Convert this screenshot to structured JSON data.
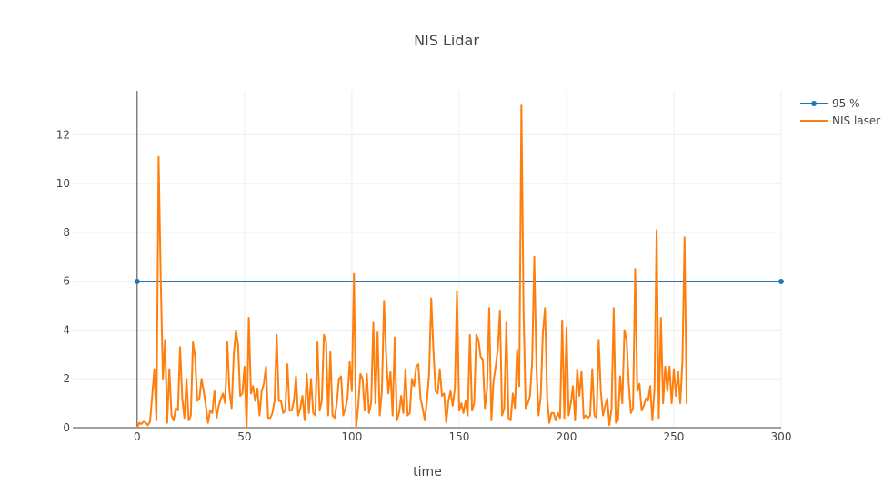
{
  "chart_data": {
    "type": "line",
    "title": "NIS Lidar",
    "xlabel": "time",
    "ylabel": "",
    "xlim": [
      -30,
      300
    ],
    "ylim": [
      0,
      13.8
    ],
    "x_ticks": [
      0,
      50,
      100,
      150,
      200,
      250,
      300
    ],
    "y_ticks": [
      0,
      2,
      4,
      6,
      8,
      10,
      12
    ],
    "grid": true,
    "legend_position": "top-right",
    "series": [
      {
        "name": "95 %",
        "color": "#1f77b4",
        "markers": true,
        "x": [
          0,
          300
        ],
        "y": [
          5.991,
          5.991
        ]
      },
      {
        "name": "NIS laser",
        "color": "#ff7f0e",
        "markers": false,
        "x_start": 0,
        "x_step": 1,
        "y": [
          0.0,
          0.2,
          0.15,
          0.25,
          0.2,
          0.1,
          0.25,
          1.3,
          2.4,
          0.3,
          11.1,
          6.0,
          2.0,
          3.6,
          0.2,
          2.4,
          0.5,
          0.3,
          0.8,
          0.7,
          3.3,
          1.2,
          0.4,
          2.0,
          0.3,
          0.5,
          3.5,
          2.9,
          1.1,
          1.2,
          2.0,
          1.5,
          0.9,
          0.2,
          0.7,
          0.6,
          1.5,
          0.4,
          0.9,
          1.2,
          1.4,
          1.0,
          3.5,
          1.5,
          0.8,
          3.0,
          4.0,
          3.4,
          1.3,
          1.4,
          2.5,
          0.0,
          4.5,
          1.4,
          1.7,
          1.1,
          1.6,
          0.5,
          1.5,
          1.8,
          2.5,
          0.4,
          0.4,
          0.6,
          1.1,
          3.8,
          1.1,
          1.1,
          0.6,
          0.7,
          2.6,
          0.7,
          0.7,
          1.1,
          2.1,
          0.5,
          0.8,
          1.3,
          0.3,
          2.2,
          0.6,
          2.0,
          0.6,
          0.5,
          3.5,
          0.7,
          1.1,
          3.8,
          3.5,
          0.5,
          3.1,
          0.5,
          0.4,
          1.0,
          2.0,
          2.1,
          0.5,
          0.8,
          1.2,
          2.7,
          1.5,
          6.3,
          0.0,
          0.9,
          2.2,
          2.0,
          0.7,
          2.2,
          0.6,
          1.0,
          4.3,
          1.0,
          3.9,
          0.5,
          1.5,
          5.2,
          3.0,
          1.4,
          2.3,
          0.5,
          3.7,
          0.3,
          0.6,
          1.3,
          0.6,
          2.4,
          0.5,
          0.6,
          2.0,
          1.7,
          2.5,
          2.6,
          1.2,
          0.8,
          0.3,
          1.1,
          2.2,
          5.3,
          3.2,
          1.5,
          1.4,
          2.4,
          1.3,
          1.4,
          0.2,
          1.1,
          1.5,
          0.9,
          1.6,
          5.6,
          0.7,
          1.0,
          0.6,
          1.1,
          0.5,
          3.8,
          0.7,
          1.0,
          3.8,
          3.6,
          2.9,
          2.8,
          0.8,
          1.6,
          4.9,
          0.3,
          1.9,
          2.5,
          3.2,
          4.8,
          0.5,
          0.8,
          4.3,
          0.4,
          0.3,
          1.4,
          0.8,
          3.2,
          1.7,
          13.2,
          4.8,
          0.8,
          1.0,
          1.3,
          2.7,
          7.0,
          2.5,
          0.5,
          1.3,
          3.9,
          4.9,
          1.2,
          0.2,
          0.6,
          0.6,
          0.3,
          0.6,
          0.4,
          4.4,
          0.4,
          4.1,
          0.5,
          1.0,
          1.7,
          0.3,
          2.4,
          1.3,
          2.3,
          0.4,
          0.5,
          0.4,
          0.5,
          2.4,
          0.5,
          0.4,
          3.6,
          1.5,
          0.5,
          0.9,
          1.2,
          0.1,
          0.8,
          4.9,
          0.2,
          0.3,
          2.1,
          1.0,
          4.0,
          3.6,
          1.8,
          0.6,
          0.8,
          6.5,
          1.5,
          1.8,
          0.7,
          0.9,
          1.2,
          1.1,
          1.7,
          0.3,
          1.6,
          8.1,
          0.4,
          4.5,
          1.0,
          2.5,
          1.5,
          2.5,
          1.0,
          2.4,
          1.3,
          2.3,
          1.0,
          2.7,
          7.8,
          1.0
        ]
      }
    ]
  }
}
